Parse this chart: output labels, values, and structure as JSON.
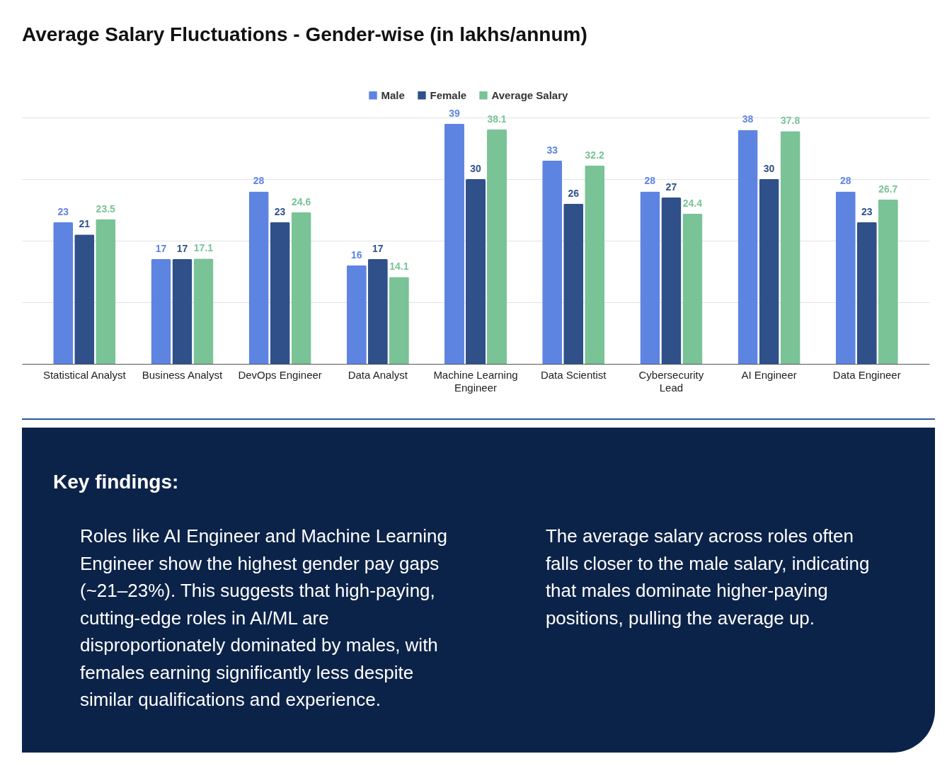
{
  "chart_data": [
    {
      "type": "bar",
      "title": "Average Salary Fluctuations - Gender-wise (in lakhs/annum)",
      "categories": [
        "Statistical Analyst",
        "Business Analyst",
        "DevOps Engineer",
        "Data Analyst",
        "Machine Learning Engineer",
        "Data Scientist",
        "Cybersecurity Lead",
        "AI Engineer",
        "Data Engineer"
      ],
      "series": [
        {
          "name": "Male",
          "color": "#5e84e2",
          "values": [
            23,
            17,
            28,
            16,
            39,
            33,
            28,
            38,
            28
          ]
        },
        {
          "name": "Female",
          "color": "#2f5089",
          "values": [
            21,
            17,
            23,
            17,
            30,
            26,
            27,
            30,
            23
          ]
        },
        {
          "name": "Average Salary",
          "color": "#79c397",
          "values": [
            23.5,
            17.1,
            24.6,
            14.1,
            38.1,
            32.2,
            24.4,
            37.8,
            26.7
          ]
        }
      ],
      "ylim": [
        0,
        40
      ],
      "yticks": [
        {
          "value": 0,
          "label": null
        },
        {
          "value": 10,
          "label": null
        },
        {
          "value": 20,
          "label": null
        },
        {
          "value": 30,
          "label": null
        },
        {
          "value": 40,
          "label": null
        }
      ],
      "grid": "y",
      "legend": "top",
      "tick_labels": "x",
      "data_labels": true
    },
    {
      "type": "other",
      "title": "Key findings:",
      "annotations": [
        "Roles like AI Engineer and Machine Learning Engineer show the highest gender pay gaps (~21–23%). This suggests that high-paying, cutting-edge roles in AI/ML are disproportionately dominated by males, with females earning significantly less despite similar qualifications and experience.",
        "The average salary across roles often falls closer to the male salary, indicating that males dominate higher-paying positions, pulling the average up."
      ]
    }
  ]
}
